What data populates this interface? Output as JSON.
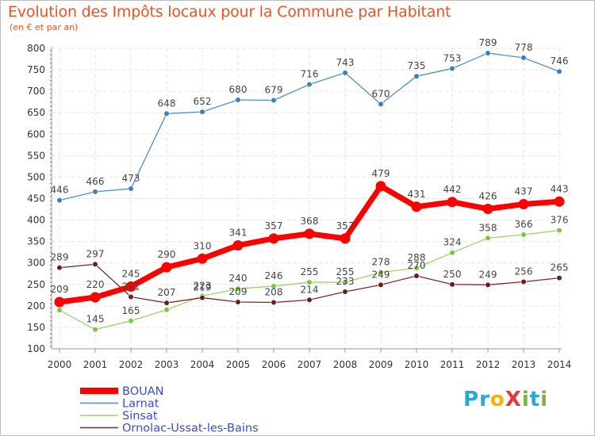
{
  "title": "Evolution des Impôts locaux pour la Commune par Habitant",
  "subtitle": "(en € et par an)",
  "logo": {
    "text": "ProXiti",
    "letters": [
      "P",
      "r",
      "o",
      "X",
      "i",
      "t",
      "i"
    ],
    "colors": [
      "#2aa7d8",
      "#2aa7d8",
      "#f4b400",
      "#e53935",
      "#7cb342",
      "#2aa7d8",
      "#7cb342"
    ]
  },
  "chart_data": {
    "type": "line",
    "x": [
      "2000",
      "2001",
      "2002",
      "2003",
      "2004",
      "2005",
      "2006",
      "2007",
      "2008",
      "2009",
      "2010",
      "2011",
      "2012",
      "2013",
      "2014"
    ],
    "ylim": [
      100,
      800
    ],
    "yticks": [
      "100",
      "150",
      "200",
      "250",
      "300",
      "350",
      "400",
      "450",
      "500",
      "550",
      "600",
      "650",
      "700",
      "750",
      "800"
    ],
    "grid": true,
    "legend_position": "bottom-left",
    "series": [
      {
        "name": "Larnat",
        "color": "#4f8fc8",
        "point_color": "#3a7fc0",
        "width": 1.3,
        "radius": 3.3,
        "values": [
          446,
          466,
          473,
          648,
          652,
          680,
          679,
          716,
          743,
          670,
          735,
          753,
          789,
          778,
          746
        ],
        "labels": [
          "446",
          "466",
          "473",
          "648",
          "652",
          "680",
          "679",
          "716",
          "743",
          "670",
          "735",
          "753",
          "789",
          "778",
          "746"
        ]
      },
      {
        "name": "Sinsat",
        "color": "#9ad36a",
        "point_color": "#7cc544",
        "width": 1.3,
        "radius": 3.3,
        "values": [
          190,
          145,
          165,
          191,
          223,
          240,
          246,
          255,
          255,
          278,
          288,
          324,
          358,
          366,
          376
        ],
        "labels": [
          "",
          "145",
          "165",
          "",
          "223",
          "240",
          "246",
          "255",
          "255",
          "278",
          "288",
          "324",
          "358",
          "366",
          "376"
        ]
      },
      {
        "name": "Ornolac-Ussat-les-Bains",
        "color": "#7a2a2a",
        "point_color": "#6b1d1d",
        "width": 1.3,
        "radius": 3.3,
        "values": [
          289,
          297,
          221,
          207,
          219,
          209,
          208,
          214,
          233,
          249,
          270,
          250,
          249,
          256,
          265
        ],
        "labels": [
          "289",
          "297",
          "221",
          "207",
          "219",
          "209",
          "208",
          "214",
          "233",
          "249",
          "270",
          "250",
          "249",
          "256",
          "265"
        ]
      },
      {
        "name": "BOUAN",
        "color": "#ff0000",
        "point_color": "#ff0000",
        "width": 7,
        "radius": 6.5,
        "values": [
          209,
          220,
          245,
          290,
          310,
          341,
          357,
          368,
          357,
          479,
          431,
          442,
          426,
          437,
          443
        ],
        "labels": [
          "209",
          "220",
          "245",
          "290",
          "310",
          "341",
          "357",
          "368",
          "357",
          "479",
          "431",
          "442",
          "426",
          "437",
          "443"
        ]
      }
    ]
  }
}
